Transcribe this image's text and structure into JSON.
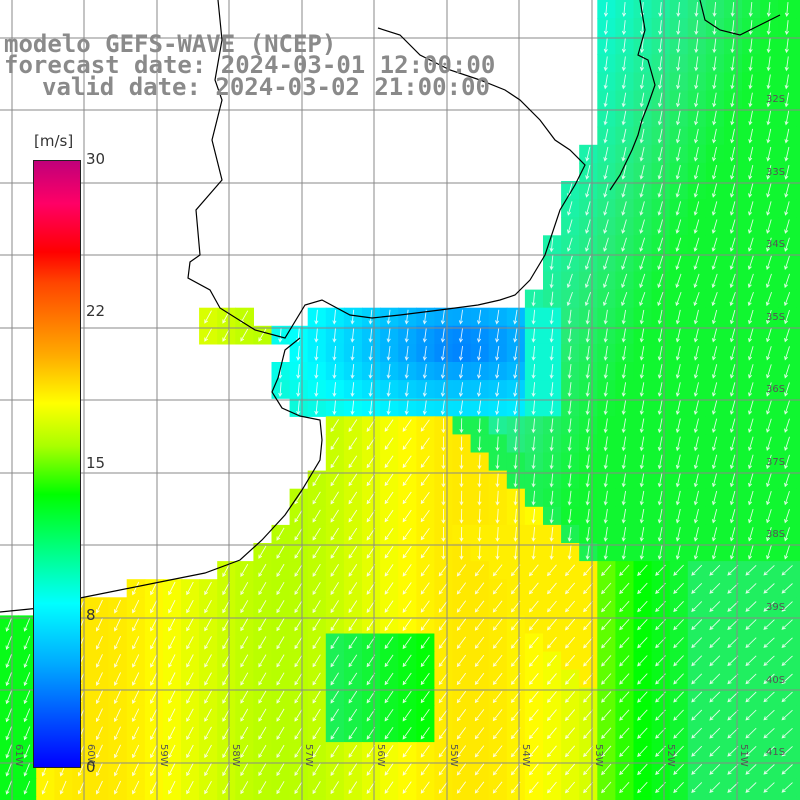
{
  "title": {
    "line1": "modelo GEFS-WAVE (NCEP)",
    "line2": "forecast date: 2024-03-01 12:00:00",
    "line3": "valid date: 2024-03-02 21:00:00"
  },
  "colorbar": {
    "unit": "[m/s]",
    "ticks": [
      "30",
      "22",
      "15",
      "8",
      "0"
    ],
    "max": 30,
    "colors": [
      "#0000ff",
      "#00aaff",
      "#00ffff",
      "#00ff00",
      "#aaff00",
      "#ffff00",
      "#ffaa00",
      "#ff0000",
      "#c0007a"
    ]
  },
  "grid": {
    "lat_labels": [
      "32S",
      "33S",
      "34S",
      "35S",
      "36S",
      "37S",
      "38S",
      "39S",
      "40S",
      "41S"
    ],
    "lon_labels": [
      "61W",
      "60W",
      "59W",
      "58W",
      "57W",
      "56W",
      "55W",
      "54W",
      "53W",
      "52W",
      "51W"
    ]
  },
  "map": {
    "land_color": "#ffffff",
    "coastline_color": "#000000",
    "grid_color": "#888888",
    "arrow_color": "#ffffff"
  }
}
